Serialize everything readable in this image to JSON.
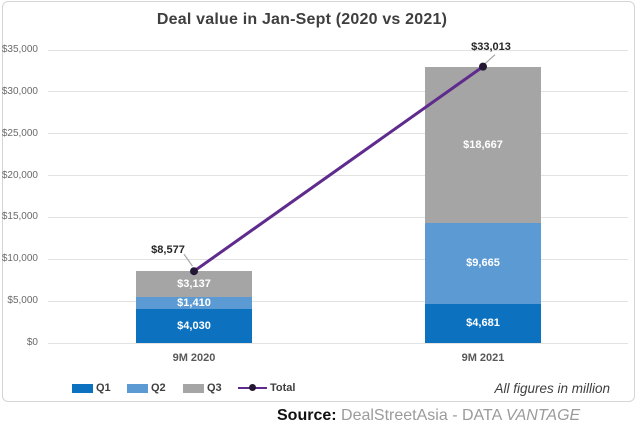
{
  "source": {
    "prefix": "Source:",
    "body": " DealStreetAsia - DATA ",
    "italic_suffix": "VANTAGE"
  },
  "chart_data": {
    "type": "bar",
    "stacked": true,
    "title": "Deal value in Jan-Sept (2020 vs 2021)",
    "annotation": "All figures in million",
    "categories": [
      "9M 2020",
      "9M 2021"
    ],
    "series": [
      {
        "name": "Q1",
        "color": "#0c72c0",
        "values": [
          4030,
          4681
        ],
        "labels": [
          "$4,030",
          "$4,681"
        ]
      },
      {
        "name": "Q2",
        "color": "#5b9ad2",
        "values": [
          1410,
          9665
        ],
        "labels": [
          "$1,410",
          "$9,665"
        ]
      },
      {
        "name": "Q3",
        "color": "#a5a5a5",
        "values": [
          3137,
          18667
        ],
        "labels": [
          "$3,137",
          "$18,667"
        ]
      }
    ],
    "total_line": {
      "name": "Total",
      "color": "#5f2b8c",
      "marker_color": "#241733",
      "values": [
        8577,
        33013
      ],
      "labels": [
        "$8,577",
        "$33,013"
      ]
    },
    "ylim": [
      0,
      35000
    ],
    "yticks": {
      "values": [
        0,
        5000,
        10000,
        15000,
        20000,
        25000,
        30000,
        35000
      ],
      "labels": [
        "$0",
        "$5,000",
        "$10,000",
        "$15,000",
        "$20,000",
        "$25,000",
        "$30,000",
        "$35,000"
      ]
    },
    "grid": true,
    "legend_position": "bottom-left",
    "legend_entries": [
      "Q1",
      "Q2",
      "Q3",
      "Total"
    ]
  }
}
